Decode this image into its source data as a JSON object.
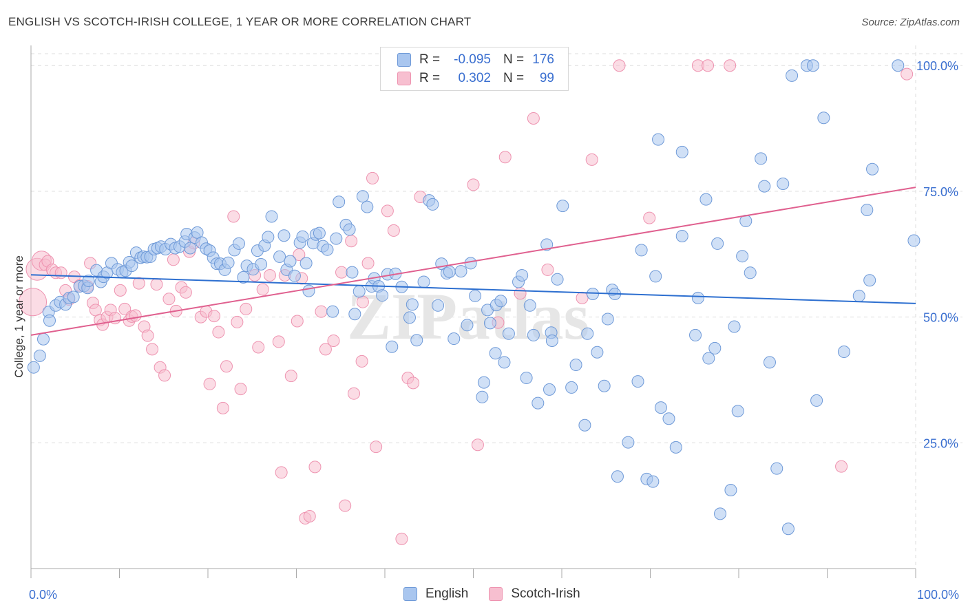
{
  "header": {
    "title": "ENGLISH VS SCOTCH-IRISH COLLEGE, 1 YEAR OR MORE CORRELATION CHART",
    "source": "Source: ZipAtlas.com"
  },
  "watermark": "ZIPatlas",
  "legend_top": {
    "rows": [
      {
        "label": "R =",
        "r": "-0.095",
        "n_label": "N =",
        "n": "176"
      },
      {
        "label": "R =",
        "r": "0.302",
        "n_label": "N =",
        "n": "99"
      }
    ]
  },
  "legend_bottom": {
    "items": [
      {
        "label": "English"
      },
      {
        "label": "Scotch-Irish"
      }
    ]
  },
  "colors": {
    "english_fill": "#a9c6ef",
    "english_stroke": "#6f9ad8",
    "english_line": "#2d6fd0",
    "scotch_fill": "#f7bfd0",
    "scotch_stroke": "#ee93b0",
    "scotch_line": "#e0608f",
    "tick_label": "#3a6fd0",
    "grid": "#dddddd"
  },
  "chart_data": {
    "type": "scatter",
    "title": "ENGLISH VS SCOTCH-IRISH COLLEGE, 1 YEAR OR MORE CORRELATION CHART",
    "xlabel": "",
    "ylabel": "College, 1 year or more",
    "xlim": [
      0,
      100
    ],
    "ylim": [
      0,
      104
    ],
    "x_tick_labels": [
      "0.0%",
      "100.0%"
    ],
    "y_ticks": [
      25,
      50,
      75,
      100
    ],
    "y_tick_labels": [
      "25.0%",
      "50.0%",
      "75.0%",
      "100.0%"
    ],
    "grid": true,
    "legend_position": "top-center",
    "series": [
      {
        "name": "English",
        "r": -0.095,
        "n": 176,
        "trend": [
          [
            0,
            58.4
          ],
          [
            100,
            52.7
          ]
        ],
        "points": [
          [
            0.3,
            40
          ],
          [
            1.0,
            42.3
          ],
          [
            1.4,
            45.6
          ],
          [
            2.0,
            51
          ],
          [
            2.1,
            49.3
          ],
          [
            2.8,
            52.3
          ],
          [
            3.3,
            53
          ],
          [
            3.9,
            52.5
          ],
          [
            4.3,
            53.8
          ],
          [
            4.8,
            54
          ],
          [
            5.5,
            56.1
          ],
          [
            6.0,
            56.2
          ],
          [
            6.4,
            55.8
          ],
          [
            6.5,
            57.2
          ],
          [
            7.4,
            59.3
          ],
          [
            7.9,
            57
          ],
          [
            8.2,
            58
          ],
          [
            8.6,
            58.8
          ],
          [
            9.1,
            60.7
          ],
          [
            9.8,
            59.5
          ],
          [
            10.3,
            58.9
          ],
          [
            10.7,
            59.2
          ],
          [
            11.1,
            60.9
          ],
          [
            11.4,
            60.2
          ],
          [
            11.9,
            62.8
          ],
          [
            12.4,
            61.8
          ],
          [
            12.7,
            62
          ],
          [
            13.1,
            61.9
          ],
          [
            13.5,
            62
          ],
          [
            13.9,
            63.5
          ],
          [
            14.3,
            63.7
          ],
          [
            14.7,
            64
          ],
          [
            15.2,
            63.5
          ],
          [
            15.8,
            64.5
          ],
          [
            16.3,
            63.7
          ],
          [
            16.8,
            64
          ],
          [
            17.4,
            65
          ],
          [
            17.6,
            66.5
          ],
          [
            18.0,
            63.7
          ],
          [
            18.5,
            65.8
          ],
          [
            18.8,
            66.8
          ],
          [
            19.3,
            64.8
          ],
          [
            19.8,
            63.6
          ],
          [
            20.2,
            63.2
          ],
          [
            20.6,
            61.8
          ],
          [
            21.0,
            60.6
          ],
          [
            21.4,
            60.6
          ],
          [
            21.9,
            59.4
          ],
          [
            22.3,
            60.8
          ],
          [
            23.0,
            63.3
          ],
          [
            23.5,
            64.6
          ],
          [
            24.0,
            57.9
          ],
          [
            24.4,
            60.2
          ],
          [
            25.1,
            59.5
          ],
          [
            25.6,
            63.2
          ],
          [
            26.0,
            60.5
          ],
          [
            26.4,
            64.2
          ],
          [
            26.8,
            65.9
          ],
          [
            27.2,
            70
          ],
          [
            28.1,
            62
          ],
          [
            28.6,
            66.2
          ],
          [
            28.9,
            59.4
          ],
          [
            29.3,
            61.1
          ],
          [
            29.8,
            58.2
          ],
          [
            30.4,
            64.8
          ],
          [
            30.7,
            66
          ],
          [
            31.1,
            60.7
          ],
          [
            31.4,
            55.2
          ],
          [
            31.9,
            64.7
          ],
          [
            32.2,
            66.4
          ],
          [
            32.6,
            66.7
          ],
          [
            33.0,
            64.1
          ],
          [
            33.5,
            63.4
          ],
          [
            34.1,
            51.1
          ],
          [
            34.5,
            65.6
          ],
          [
            34.8,
            72.9
          ],
          [
            35.6,
            68.3
          ],
          [
            36.0,
            67.4
          ],
          [
            36.3,
            58.9
          ],
          [
            36.6,
            50.6
          ],
          [
            37.1,
            55.1
          ],
          [
            37.5,
            74
          ],
          [
            38.0,
            71.9
          ],
          [
            38.5,
            56.1
          ],
          [
            38.8,
            57.7
          ],
          [
            39.3,
            56.1
          ],
          [
            39.7,
            54.3
          ],
          [
            40.3,
            58.5
          ],
          [
            40.8,
            44.1
          ],
          [
            41.2,
            58.6
          ],
          [
            41.9,
            56
          ],
          [
            42.8,
            49.9
          ],
          [
            43.1,
            52.5
          ],
          [
            43.6,
            45.4
          ],
          [
            44.4,
            57
          ],
          [
            45.0,
            73.2
          ],
          [
            45.4,
            72.4
          ],
          [
            46.0,
            52.3
          ],
          [
            46.4,
            60.6
          ],
          [
            47.0,
            58.7
          ],
          [
            47.3,
            59
          ],
          [
            47.8,
            45.7
          ],
          [
            48.6,
            59.1
          ],
          [
            49.3,
            48.4
          ],
          [
            49.7,
            60.7
          ],
          [
            50.2,
            54.2
          ],
          [
            51.0,
            34.1
          ],
          [
            51.2,
            37
          ],
          [
            51.6,
            51.4
          ],
          [
            51.9,
            48.8
          ],
          [
            52.5,
            42.8
          ],
          [
            52.6,
            52.4
          ],
          [
            53.1,
            53.2
          ],
          [
            53.5,
            41
          ],
          [
            54.0,
            46.7
          ],
          [
            55.1,
            57
          ],
          [
            55.5,
            58.3
          ],
          [
            56.0,
            37.9
          ],
          [
            56.4,
            52.3
          ],
          [
            56.8,
            46.4
          ],
          [
            57.3,
            32.9
          ],
          [
            58.3,
            64.4
          ],
          [
            58.6,
            35.6
          ],
          [
            58.8,
            46.9
          ],
          [
            58.9,
            45.3
          ],
          [
            59.5,
            57.5
          ],
          [
            60.1,
            72.1
          ],
          [
            61.1,
            36
          ],
          [
            61.6,
            40.5
          ],
          [
            62.6,
            28.5
          ],
          [
            62.9,
            46.7
          ],
          [
            63.5,
            54.6
          ],
          [
            64.0,
            43
          ],
          [
            64.8,
            36.3
          ],
          [
            65.2,
            49.6
          ],
          [
            65.7,
            55.4
          ],
          [
            66.0,
            54.6
          ],
          [
            67.5,
            25.1
          ],
          [
            66.3,
            18.3
          ],
          [
            68.6,
            37.2
          ],
          [
            69.0,
            63.3
          ],
          [
            69.6,
            17.8
          ],
          [
            70.3,
            17.3
          ],
          [
            70.6,
            58.1
          ],
          [
            70.9,
            85.3
          ],
          [
            71.2,
            32
          ],
          [
            72.1,
            29.8
          ],
          [
            72.9,
            24.1
          ],
          [
            73.6,
            66.1
          ],
          [
            73.6,
            82.8
          ],
          [
            75.1,
            46.4
          ],
          [
            75.4,
            53.8
          ],
          [
            76.3,
            73.4
          ],
          [
            76.6,
            41.8
          ],
          [
            77.3,
            43.8
          ],
          [
            77.6,
            64.6
          ],
          [
            77.9,
            10.9
          ],
          [
            79.1,
            15.6
          ],
          [
            79.5,
            48.1
          ],
          [
            79.9,
            31.3
          ],
          [
            80.4,
            62.1
          ],
          [
            80.8,
            69.1
          ],
          [
            81.3,
            58.8
          ],
          [
            82.5,
            81.5
          ],
          [
            82.9,
            76
          ],
          [
            83.5,
            41
          ],
          [
            84.3,
            19.9
          ],
          [
            85.0,
            76.5
          ],
          [
            85.6,
            7.9
          ],
          [
            86.0,
            98
          ],
          [
            87.7,
            100
          ],
          [
            88.4,
            100
          ],
          [
            88.8,
            33.4
          ],
          [
            89.6,
            89.6
          ],
          [
            91.9,
            43.1
          ],
          [
            93.6,
            54.2
          ],
          [
            94.5,
            71.3
          ],
          [
            94.8,
            57.3
          ],
          [
            95.1,
            79.4
          ],
          [
            98.0,
            100
          ],
          [
            99.8,
            65.2
          ]
        ]
      },
      {
        "name": "Scotch-Irish",
        "r": 0.302,
        "n": 99,
        "trend": [
          [
            0,
            46.4
          ],
          [
            100,
            75.8
          ]
        ],
        "points": [
          [
            0.2,
            53
          ],
          [
            0.7,
            59.5
          ],
          [
            1.2,
            61.2
          ],
          [
            1.6,
            60.4
          ],
          [
            1.9,
            61.1
          ],
          [
            2.4,
            59.4
          ],
          [
            2.8,
            58.8
          ],
          [
            3.4,
            58.8
          ],
          [
            3.9,
            55.3
          ],
          [
            4.3,
            53.5
          ],
          [
            4.9,
            58
          ],
          [
            5.5,
            56.3
          ],
          [
            6.4,
            56.1
          ],
          [
            6.7,
            60.7
          ],
          [
            7.0,
            52.8
          ],
          [
            7.3,
            51.4
          ],
          [
            7.8,
            49.4
          ],
          [
            8.1,
            48.5
          ],
          [
            8.6,
            50
          ],
          [
            9.0,
            51.4
          ],
          [
            9.5,
            49.8
          ],
          [
            10.1,
            55.3
          ],
          [
            10.6,
            51.6
          ],
          [
            11.1,
            49.3
          ],
          [
            11.4,
            50.1
          ],
          [
            11.8,
            50.3
          ],
          [
            12.2,
            56.7
          ],
          [
            12.8,
            48.1
          ],
          [
            13.2,
            46.3
          ],
          [
            13.7,
            43.6
          ],
          [
            14.2,
            56.5
          ],
          [
            14.6,
            40
          ],
          [
            15.1,
            38.4
          ],
          [
            15.6,
            53.6
          ],
          [
            16.1,
            61.4
          ],
          [
            16.4,
            51.2
          ],
          [
            17.0,
            55.9
          ],
          [
            17.5,
            54.9
          ],
          [
            17.9,
            63
          ],
          [
            18.4,
            64.7
          ],
          [
            19.2,
            50
          ],
          [
            19.8,
            51.1
          ],
          [
            20.2,
            36.7
          ],
          [
            20.7,
            50.2
          ],
          [
            21.2,
            47
          ],
          [
            21.7,
            31.9
          ],
          [
            22.1,
            40.2
          ],
          [
            22.9,
            70
          ],
          [
            23.3,
            49
          ],
          [
            23.7,
            35.7
          ],
          [
            24.3,
            51.6
          ],
          [
            25.3,
            58.3
          ],
          [
            25.7,
            44
          ],
          [
            26.2,
            55.5
          ],
          [
            27.0,
            58.3
          ],
          [
            28.0,
            45.1
          ],
          [
            28.3,
            19.1
          ],
          [
            28.7,
            58.3
          ],
          [
            29.4,
            38.3
          ],
          [
            30.1,
            49.2
          ],
          [
            30.3,
            62.4
          ],
          [
            30.6,
            57.7
          ],
          [
            31.0,
            10
          ],
          [
            31.5,
            10.4
          ],
          [
            32.1,
            20.2
          ],
          [
            32.8,
            51.1
          ],
          [
            33.3,
            43.6
          ],
          [
            34.2,
            45.3
          ],
          [
            35.1,
            58.9
          ],
          [
            35.5,
            12.5
          ],
          [
            36.2,
            65.1
          ],
          [
            36.5,
            34.8
          ],
          [
            37.4,
            41.2
          ],
          [
            37.5,
            53
          ],
          [
            38.1,
            60.7
          ],
          [
            38.6,
            77.6
          ],
          [
            39.0,
            24.2
          ],
          [
            40.3,
            71.1
          ],
          [
            41.0,
            67.2
          ],
          [
            41.9,
            5.9
          ],
          [
            42.6,
            37.9
          ],
          [
            43.2,
            36.9
          ],
          [
            44.0,
            73.9
          ],
          [
            50.0,
            76.3
          ],
          [
            50.5,
            24.6
          ],
          [
            52.8,
            48.9
          ],
          [
            53.6,
            81.8
          ],
          [
            55.3,
            54.7
          ],
          [
            56.8,
            89.5
          ],
          [
            58.4,
            59.4
          ],
          [
            62.3,
            53.8
          ],
          [
            63.4,
            81.3
          ],
          [
            66.5,
            100
          ],
          [
            69.9,
            69.7
          ],
          [
            75.4,
            100
          ],
          [
            76.5,
            100
          ],
          [
            79.0,
            100
          ],
          [
            91.6,
            20.3
          ],
          [
            99.0,
            98.3
          ]
        ]
      }
    ]
  }
}
